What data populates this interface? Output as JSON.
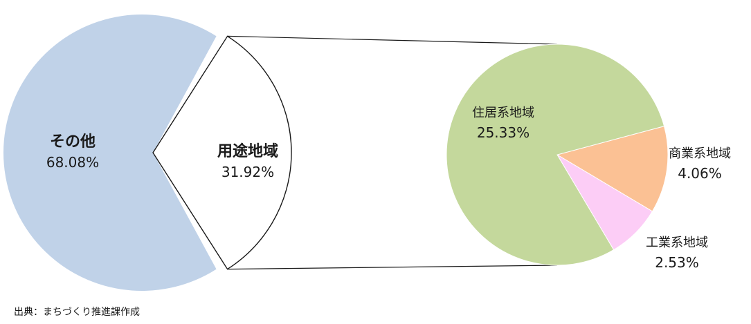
{
  "chart_data": [
    {
      "type": "pie",
      "categories": [
        "その他",
        "用途地域"
      ],
      "values": [
        68.08,
        31.92
      ],
      "value_labels": [
        "68.08%",
        "31.92%"
      ],
      "colors": [
        "#c0d2e8",
        "#ffffff"
      ]
    },
    {
      "type": "pie",
      "categories": [
        "住居系地域",
        "商業系地域",
        "工業系地域"
      ],
      "values": [
        25.33,
        4.06,
        2.53
      ],
      "value_labels": [
        "25.33%",
        "4.06%",
        "2.53%"
      ],
      "colors": [
        "#c4d89c",
        "#fbc194",
        "#fccdf6"
      ]
    }
  ],
  "source_note": "出典：まちづくり推進課作成"
}
